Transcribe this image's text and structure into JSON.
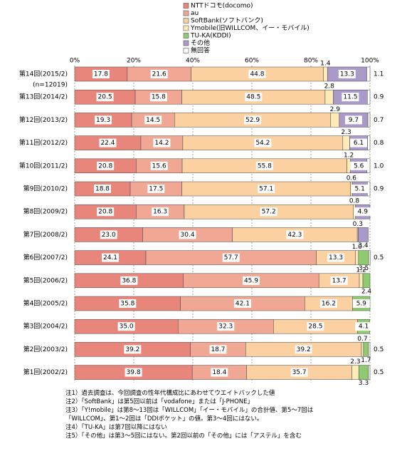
{
  "chart_data": {
    "type": "stacked-bar-horizontal",
    "categories": [
      "第14回(2015/2)",
      "第13回(2014/2)",
      "第12回(2013/2)",
      "第11回(2012/2)",
      "第10回(2011/2)",
      "第9回(2010/2)",
      "第8回(2009/2)",
      "第7回(2008/2)",
      "第6回(2007/2)",
      "第5回(2006/2)",
      "第4回(2005/2)",
      "第3回(2004/2)",
      "第2回(2003/2)",
      "第1回(2002/2)"
    ],
    "sample_size_label": "(n=12019)",
    "xlim": [
      0,
      100
    ],
    "xticks": [
      {
        "value": 0,
        "label": "0%"
      },
      {
        "value": 20,
        "label": "20%"
      },
      {
        "value": 40,
        "label": "40%"
      },
      {
        "value": 60,
        "label": "60%"
      },
      {
        "value": 80,
        "label": "80%"
      },
      {
        "value": 100,
        "label": "100%"
      }
    ],
    "grid": true,
    "series": [
      {
        "name": "NTTドコモ(docomo)",
        "color": "#e8867b",
        "values": [
          17.8,
          20.5,
          19.3,
          22.4,
          20.8,
          18.8,
          20.8,
          23.0,
          24.1,
          36.8,
          35.8,
          35.0,
          39.2,
          39.8
        ],
        "value_labels": [
          "17.8",
          "20.5",
          "19.3",
          "22.4",
          "20.8",
          "18.8",
          "20.8",
          "23.0",
          "24.1",
          "36.8",
          "35.8",
          "35.0",
          "39.2",
          "39.8"
        ]
      },
      {
        "name": "au",
        "color": "#f0a794",
        "values": [
          21.6,
          15.8,
          14.5,
          14.2,
          15.6,
          17.5,
          16.3,
          30.4,
          57.7,
          45.9,
          42.1,
          32.3,
          18.7,
          18.4
        ],
        "value_labels": [
          "21.6",
          "15.8",
          "14.5",
          "14.2",
          "15.6",
          "17.5",
          "16.3",
          "30.4",
          "57.7",
          "45.9",
          "42.1",
          "32.3",
          "18.7",
          "18.4"
        ]
      },
      {
        "name": "SoftBank(ソフトバンク)",
        "color": "#fcd1a2",
        "values": [
          44.8,
          48.5,
          52.9,
          54.2,
          55.8,
          57.1,
          57.2,
          42.3,
          13.3,
          13.7,
          16.2,
          28.5,
          39.2,
          35.7
        ],
        "value_labels": [
          "44.8",
          "48.5",
          "52.9",
          "54.2",
          "55.8",
          "57.1",
          "57.2",
          "42.3",
          "13.3",
          "13.7",
          "16.2",
          "28.5",
          "39.2",
          "35.7"
        ]
      },
      {
        "name": "Ymobile(旧WILLCOM、イー・モバイル)",
        "color": "#fdebb8",
        "values": [
          1.4,
          2.8,
          2.9,
          2.3,
          1.2,
          0.6,
          0.8,
          0.3,
          1.0,
          1.2,
          null,
          null,
          0.7,
          2.3
        ],
        "value_labels": [
          "1.4",
          "2.8",
          "2.9",
          "2.3",
          "1.2",
          "0.6",
          "0.8",
          "0.3",
          "1.0",
          "1.2",
          null,
          null,
          "0.7",
          "2.3"
        ]
      },
      {
        "name": "TU-KA(KDDI)",
        "color": "#8fca72",
        "values": [
          null,
          null,
          null,
          null,
          null,
          null,
          null,
          null,
          3.5,
          2.4,
          5.9,
          4.1,
          1.7,
          3.3
        ],
        "value_labels": [
          null,
          null,
          null,
          null,
          null,
          null,
          null,
          null,
          "3.5",
          "2.4",
          "5.9",
          "4.1",
          "1.7",
          "3.3"
        ]
      },
      {
        "name": "その他",
        "color": "#a99ac9",
        "values": [
          13.3,
          11.5,
          9.7,
          6.1,
          5.6,
          5.1,
          4.9,
          3.4,
          null,
          null,
          null,
          null,
          null,
          null
        ],
        "value_labels": [
          "13.3",
          "11.5",
          "9.7",
          "6.1",
          "5.6",
          "5.1",
          "4.9",
          "3.4",
          null,
          null,
          null,
          null,
          null,
          null
        ]
      },
      {
        "name": "無回答",
        "color": "#ffffff",
        "values": [
          1.1,
          0.9,
          0.7,
          0.8,
          1.0,
          0.9,
          null,
          null,
          0.5,
          null,
          null,
          null,
          0.5,
          0.5
        ],
        "value_labels": [
          "1.1",
          "0.9",
          "0.7",
          "0.8",
          "1.0",
          "0.9",
          null,
          null,
          "0.5",
          null,
          null,
          null,
          "0.5",
          "0.5"
        ]
      }
    ],
    "notes": [
      "注1）過去調査は、今回調査の性年代構成比にあわせてウエイトバックした値",
      "注2）「SoftBank」は第5回以前は「vodafone」または「J-PHONE」",
      "注3）「Y!mobile」は第8～13回は「WILLCOM」「イー・モバイル」の合計値、第5～7回は「WILLCOM」、第1～2回は「DDIポケット」の値。第3～4回にはない。",
      "注4）「TU-KA」は第7回以降にはない",
      "注5）「その他」は第3～5回にはない。第2回以前の「その他」には「アステル」を含む"
    ]
  }
}
